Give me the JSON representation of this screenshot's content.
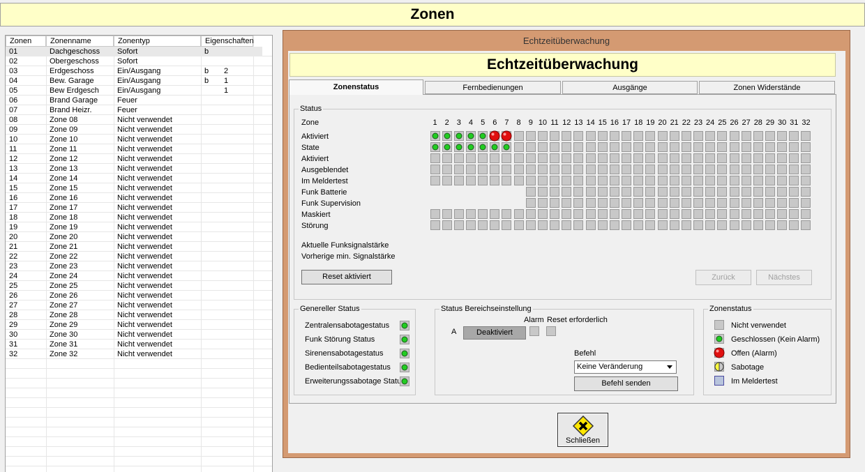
{
  "header": {
    "title": "Zonen"
  },
  "table": {
    "columns": [
      "Zonen",
      "Zonenname",
      "Zonentyp",
      "Eigenschaften"
    ],
    "rows": [
      {
        "zone": "01",
        "name": "Dachgeschoss",
        "type": "Sofort",
        "flag": "b"
      },
      {
        "zone": "02",
        "name": "Obergeschoss",
        "type": "Sofort"
      },
      {
        "zone": "03",
        "name": "Erdgeschoss",
        "type": "Ein/Ausgang",
        "flag": "b",
        "count": "2"
      },
      {
        "zone": "04",
        "name": "Bew. Garage",
        "type": "Ein/Ausgang",
        "flag": "b",
        "count": "1"
      },
      {
        "zone": "05",
        "name": "Bew Erdgesch",
        "type": "Ein/Ausgang",
        "count": "1"
      },
      {
        "zone": "06",
        "name": "Brand Garage",
        "type": "Feuer"
      },
      {
        "zone": "07",
        "name": "Brand Heizr.",
        "type": "Feuer"
      },
      {
        "zone": "08",
        "name": "Zone 08",
        "type": "Nicht verwendet"
      },
      {
        "zone": "09",
        "name": "Zone 09",
        "type": "Nicht verwendet"
      },
      {
        "zone": "10",
        "name": "Zone 10",
        "type": "Nicht verwendet"
      },
      {
        "zone": "11",
        "name": "Zone 11",
        "type": "Nicht verwendet"
      },
      {
        "zone": "12",
        "name": "Zone 12",
        "type": "Nicht verwendet"
      },
      {
        "zone": "13",
        "name": "Zone 13",
        "type": "Nicht verwendet"
      },
      {
        "zone": "14",
        "name": "Zone 14",
        "type": "Nicht verwendet"
      },
      {
        "zone": "15",
        "name": "Zone 15",
        "type": "Nicht verwendet"
      },
      {
        "zone": "16",
        "name": "Zone 16",
        "type": "Nicht verwendet"
      },
      {
        "zone": "17",
        "name": "Zone 17",
        "type": "Nicht verwendet"
      },
      {
        "zone": "18",
        "name": "Zone 18",
        "type": "Nicht verwendet"
      },
      {
        "zone": "19",
        "name": "Zone 19",
        "type": "Nicht verwendet"
      },
      {
        "zone": "20",
        "name": "Zone 20",
        "type": "Nicht verwendet"
      },
      {
        "zone": "21",
        "name": "Zone 21",
        "type": "Nicht verwendet"
      },
      {
        "zone": "22",
        "name": "Zone 22",
        "type": "Nicht verwendet"
      },
      {
        "zone": "23",
        "name": "Zone 23",
        "type": "Nicht verwendet"
      },
      {
        "zone": "24",
        "name": "Zone 24",
        "type": "Nicht verwendet"
      },
      {
        "zone": "25",
        "name": "Zone 25",
        "type": "Nicht verwendet"
      },
      {
        "zone": "26",
        "name": "Zone 26",
        "type": "Nicht verwendet"
      },
      {
        "zone": "27",
        "name": "Zone 27",
        "type": "Nicht verwendet"
      },
      {
        "zone": "28",
        "name": "Zone 28",
        "type": "Nicht verwendet"
      },
      {
        "zone": "29",
        "name": "Zone 29",
        "type": "Nicht verwendet"
      },
      {
        "zone": "30",
        "name": "Zone 30",
        "type": "Nicht verwendet"
      },
      {
        "zone": "31",
        "name": "Zone 31",
        "type": "Nicht verwendet"
      },
      {
        "zone": "32",
        "name": "Zone 32",
        "type": "Nicht verwendet"
      }
    ]
  },
  "dialog": {
    "window_title": "Echtzeitüberwachung",
    "heading": "Echtzeitüberwachung",
    "tabs": [
      "Zonenstatus",
      "Fernbedienungen",
      "Ausgänge",
      "Zonen Widerstände"
    ],
    "status": {
      "title": "Status",
      "zone_label": "Zone",
      "zones": [
        1,
        2,
        3,
        4,
        5,
        6,
        7,
        8,
        9,
        10,
        11,
        12,
        13,
        14,
        15,
        16,
        17,
        18,
        19,
        20,
        21,
        22,
        23,
        24,
        25,
        26,
        27,
        28,
        29,
        30,
        31,
        32
      ],
      "rows": [
        {
          "label": "Aktiviert",
          "cells": [
            1,
            1,
            1,
            1,
            1,
            2,
            2,
            0,
            0,
            0,
            0,
            0,
            0,
            0,
            0,
            0,
            0,
            0,
            0,
            0,
            0,
            0,
            0,
            0,
            0,
            0,
            0,
            0,
            0,
            0,
            0,
            0
          ]
        },
        {
          "label": "State",
          "cells": [
            1,
            1,
            1,
            1,
            1,
            1,
            1,
            0,
            0,
            0,
            0,
            0,
            0,
            0,
            0,
            0,
            0,
            0,
            0,
            0,
            0,
            0,
            0,
            0,
            0,
            0,
            0,
            0,
            0,
            0,
            0,
            0
          ]
        },
        {
          "label": "Aktiviert",
          "cells": [
            0,
            0,
            0,
            0,
            0,
            0,
            0,
            0,
            0,
            0,
            0,
            0,
            0,
            0,
            0,
            0,
            0,
            0,
            0,
            0,
            0,
            0,
            0,
            0,
            0,
            0,
            0,
            0,
            0,
            0,
            0,
            0
          ]
        },
        {
          "label": "Ausgeblendet",
          "cells": [
            0,
            0,
            0,
            0,
            0,
            0,
            0,
            0,
            0,
            0,
            0,
            0,
            0,
            0,
            0,
            0,
            0,
            0,
            0,
            0,
            0,
            0,
            0,
            0,
            0,
            0,
            0,
            0,
            0,
            0,
            0,
            0
          ]
        },
        {
          "label": "Im Meldertest",
          "cells": [
            0,
            0,
            0,
            0,
            0,
            0,
            0,
            0,
            0,
            0,
            0,
            0,
            0,
            0,
            0,
            0,
            0,
            0,
            0,
            0,
            0,
            0,
            0,
            0,
            0,
            0,
            0,
            0,
            0,
            0,
            0,
            0
          ]
        },
        {
          "label": "Funk Batterie",
          "cells": [
            null,
            null,
            null,
            null,
            null,
            null,
            null,
            null,
            0,
            0,
            0,
            0,
            0,
            0,
            0,
            0,
            0,
            0,
            0,
            0,
            0,
            0,
            0,
            0,
            0,
            0,
            0,
            0,
            0,
            0,
            0,
            0
          ]
        },
        {
          "label": "Funk Supervision",
          "cells": [
            null,
            null,
            null,
            null,
            null,
            null,
            null,
            null,
            0,
            0,
            0,
            0,
            0,
            0,
            0,
            0,
            0,
            0,
            0,
            0,
            0,
            0,
            0,
            0,
            0,
            0,
            0,
            0,
            0,
            0,
            0,
            0
          ]
        },
        {
          "label": "Maskiert",
          "cells": [
            0,
            0,
            0,
            0,
            0,
            0,
            0,
            0,
            0,
            0,
            0,
            0,
            0,
            0,
            0,
            0,
            0,
            0,
            0,
            0,
            0,
            0,
            0,
            0,
            0,
            0,
            0,
            0,
            0,
            0,
            0,
            0
          ]
        },
        {
          "label": "Störung",
          "cells": [
            0,
            0,
            0,
            0,
            0,
            0,
            0,
            0,
            0,
            0,
            0,
            0,
            0,
            0,
            0,
            0,
            0,
            0,
            0,
            0,
            0,
            0,
            0,
            0,
            0,
            0,
            0,
            0,
            0,
            0,
            0,
            0
          ]
        }
      ],
      "signal_labels": [
        "Aktuelle Funksignalstärke",
        "Vorherige min. Signalstärke"
      ],
      "reset_button": "Reset aktiviert",
      "back_button": "Zurück",
      "next_button": "Nächstes"
    },
    "general_status": {
      "title": "Genereller Status",
      "items": [
        "Zentralensabotagestatus",
        "Funk Störung Status",
        "Sirenensabotagestatus",
        "Bedienteilsabotagestatus",
        "Erweiterungssabotage Status"
      ]
    },
    "area_status": {
      "title": "Status Bereichseinstellung",
      "area": "A",
      "state": "Deaktiviert",
      "alarm_label": "Alarm",
      "reset_label": "Reset erforderlich",
      "command_label": "Befehl",
      "command_value": "Keine Veränderung",
      "send_button": "Befehl senden"
    },
    "zone_legend": {
      "title": "Zonenstatus",
      "items": [
        "Nicht verwendet",
        "Geschlossen (Kein Alarm)",
        "Offen (Alarm)",
        "Sabotage",
        "Im Meldertest"
      ]
    },
    "close_button": "Schließen"
  }
}
